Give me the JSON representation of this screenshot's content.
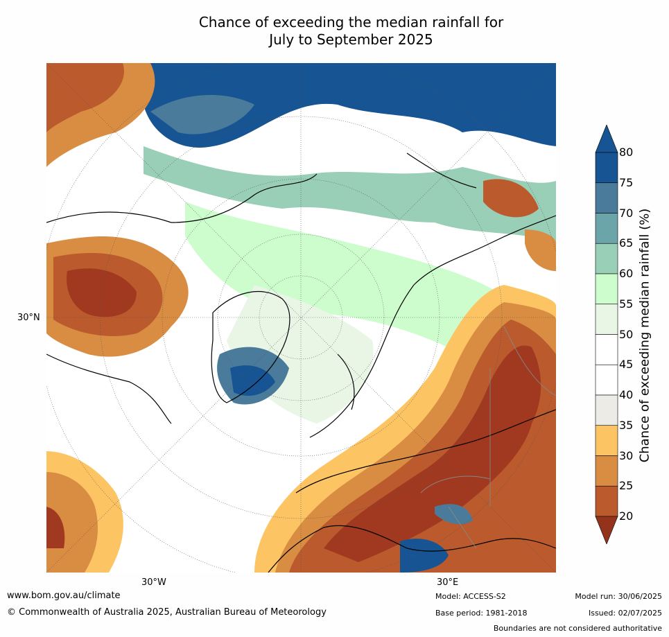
{
  "title_line1": "Chance of exceeding the median rainfall for",
  "title_line2": "July to September 2025",
  "axis_labels": {
    "lat_30n": "30°N",
    "lon_30w": "30°W",
    "lon_30e": "30°E"
  },
  "colorbar": {
    "label": "Chance of exceeding median rainfall (%)",
    "ticks": [
      "20",
      "25",
      "30",
      "35",
      "40",
      "45",
      "50",
      "55",
      "60",
      "65",
      "70",
      "75",
      "80"
    ],
    "colors": [
      "#a0391f",
      "#bb5a2c",
      "#d98d43",
      "#fcc463",
      "#ecebe6",
      "#ffffff",
      "#ffffff",
      "#e9f6e6",
      "#cdfdcd",
      "#99cfb6",
      "#6ba5a9",
      "#4a7b9a",
      "#175493"
    ],
    "under_color": "#93331c",
    "over_color": "#175493"
  },
  "footer": {
    "url": "www.bom.gov.au/climate",
    "copyright": "© Commonwealth of Australia 2025, Australian Bureau of Meteorology",
    "model": "Model: ACCESS-S2",
    "base_period": "Base period: 1981-2018",
    "model_run": "Model run: 30/06/2025",
    "issued": "Issued: 02/07/2025",
    "boundaries_note": "Boundaries are not considered authoritative"
  }
}
